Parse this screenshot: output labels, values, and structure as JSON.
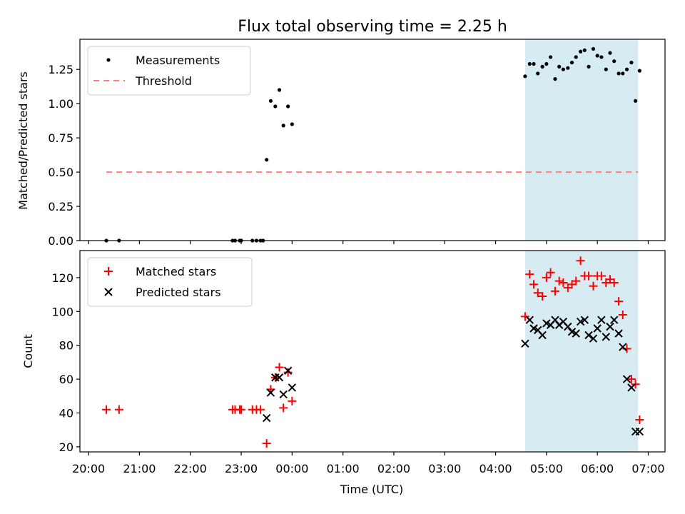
{
  "title": "Flux total observing time = 2.25 h",
  "xlabel": "Time (UTC)",
  "x_tick_labels": [
    "20:00",
    "21:00",
    "22:00",
    "23:00",
    "00:00",
    "01:00",
    "02:00",
    "03:00",
    "04:00",
    "05:00",
    "06:00",
    "07:00"
  ],
  "colors": {
    "measurements": "#000000",
    "threshold": "#ff7f7f",
    "matched": "#ff0000",
    "predicted": "#000000",
    "span": "#add8e6"
  },
  "chart_data": [
    {
      "type": "scatter",
      "panel": "top",
      "ylabel": "Matched/Predicted stars",
      "xlim": [
        19.83,
        31.33
      ],
      "ylim": [
        0,
        1.47
      ],
      "x_unit": "hours since 00:00 of first day (24 = midnight)",
      "y_ticks": [
        0.0,
        0.25,
        0.5,
        0.75,
        1.0,
        1.25
      ],
      "y_tick_labels": [
        "0.00",
        "0.25",
        "0.50",
        "0.75",
        "1.00",
        "1.25"
      ],
      "shaded_span": [
        28.58,
        30.8
      ],
      "legend": {
        "position": "top-left",
        "entries": [
          "Measurements",
          "Threshold"
        ]
      },
      "threshold": {
        "name": "Threshold",
        "y": 0.5,
        "x_range": [
          20.35,
          30.8
        ]
      },
      "series": [
        {
          "name": "Measurements",
          "x": [
            20.35,
            20.6,
            22.83,
            22.88,
            22.97,
            23.0,
            23.22,
            23.3,
            23.38,
            23.43,
            23.5,
            23.58,
            23.67,
            23.75,
            23.83,
            23.92,
            24.0,
            28.58,
            28.67,
            28.75,
            28.83,
            28.92,
            29.0,
            29.08,
            29.17,
            29.25,
            29.33,
            29.42,
            29.5,
            29.58,
            29.67,
            29.75,
            29.83,
            29.92,
            30.0,
            30.08,
            30.17,
            30.25,
            30.33,
            30.42,
            30.5,
            30.58,
            30.67,
            30.75,
            30.83
          ],
          "y": [
            0,
            0,
            0,
            0,
            0,
            0,
            0,
            0,
            0,
            0,
            0.59,
            1.02,
            0.98,
            1.1,
            0.84,
            0.98,
            0.85,
            1.2,
            1.29,
            1.29,
            1.22,
            1.27,
            1.29,
            1.34,
            1.18,
            1.27,
            1.25,
            1.26,
            1.3,
            1.34,
            1.38,
            1.39,
            1.27,
            1.4,
            1.35,
            1.34,
            1.25,
            1.37,
            1.31,
            1.22,
            1.22,
            1.25,
            1.3,
            1.02,
            1.24
          ]
        }
      ]
    },
    {
      "type": "scatter",
      "panel": "bottom",
      "ylabel": "Count",
      "xlim": [
        19.83,
        31.33
      ],
      "ylim": [
        17,
        136
      ],
      "y_ticks": [
        20,
        40,
        60,
        80,
        100,
        120
      ],
      "y_tick_labels": [
        "20",
        "40",
        "60",
        "80",
        "100",
        "120"
      ],
      "shaded_span": [
        28.58,
        30.8
      ],
      "legend": {
        "position": "top-left",
        "entries": [
          "Matched stars",
          "Predicted stars"
        ]
      },
      "series": [
        {
          "name": "Matched stars",
          "marker": "plus",
          "x": [
            20.35,
            20.6,
            22.83,
            22.88,
            22.97,
            23.0,
            23.22,
            23.3,
            23.38,
            23.5,
            23.58,
            23.67,
            23.75,
            23.83,
            23.92,
            24.0,
            28.58,
            28.67,
            28.75,
            28.83,
            28.92,
            29.0,
            29.08,
            29.17,
            29.25,
            29.33,
            29.42,
            29.5,
            29.58,
            29.67,
            29.75,
            29.83,
            29.92,
            30.0,
            30.08,
            30.17,
            30.25,
            30.33,
            30.42,
            30.5,
            30.58,
            30.67,
            30.75,
            30.83
          ],
          "y": [
            42,
            42,
            42,
            42,
            42,
            42,
            42,
            42,
            42,
            22,
            54,
            61,
            67,
            43,
            64,
            47,
            97,
            122,
            116,
            111,
            109,
            120,
            123,
            112,
            118,
            117,
            114,
            116,
            118,
            130,
            121,
            121,
            115,
            121,
            121,
            117,
            119,
            117,
            106,
            98,
            78,
            60,
            57,
            36
          ]
        },
        {
          "name": "Predicted stars",
          "marker": "x",
          "x": [
            23.5,
            23.58,
            23.67,
            23.75,
            23.83,
            23.92,
            24.0,
            28.58,
            28.67,
            28.75,
            28.83,
            28.92,
            29.0,
            29.08,
            29.17,
            29.25,
            29.33,
            29.42,
            29.5,
            29.58,
            29.67,
            29.75,
            29.83,
            29.92,
            30.0,
            30.08,
            30.17,
            30.25,
            30.33,
            30.42,
            30.5,
            30.58,
            30.67,
            30.75,
            30.83
          ],
          "y": [
            37,
            52,
            61,
            61,
            51,
            65,
            55,
            81,
            95,
            90,
            89,
            86,
            93,
            92,
            95,
            92,
            94,
            91,
            88,
            87,
            94,
            95,
            86,
            84,
            90,
            95,
            85,
            91,
            95,
            87,
            79,
            60,
            55,
            29,
            29
          ]
        }
      ]
    }
  ]
}
